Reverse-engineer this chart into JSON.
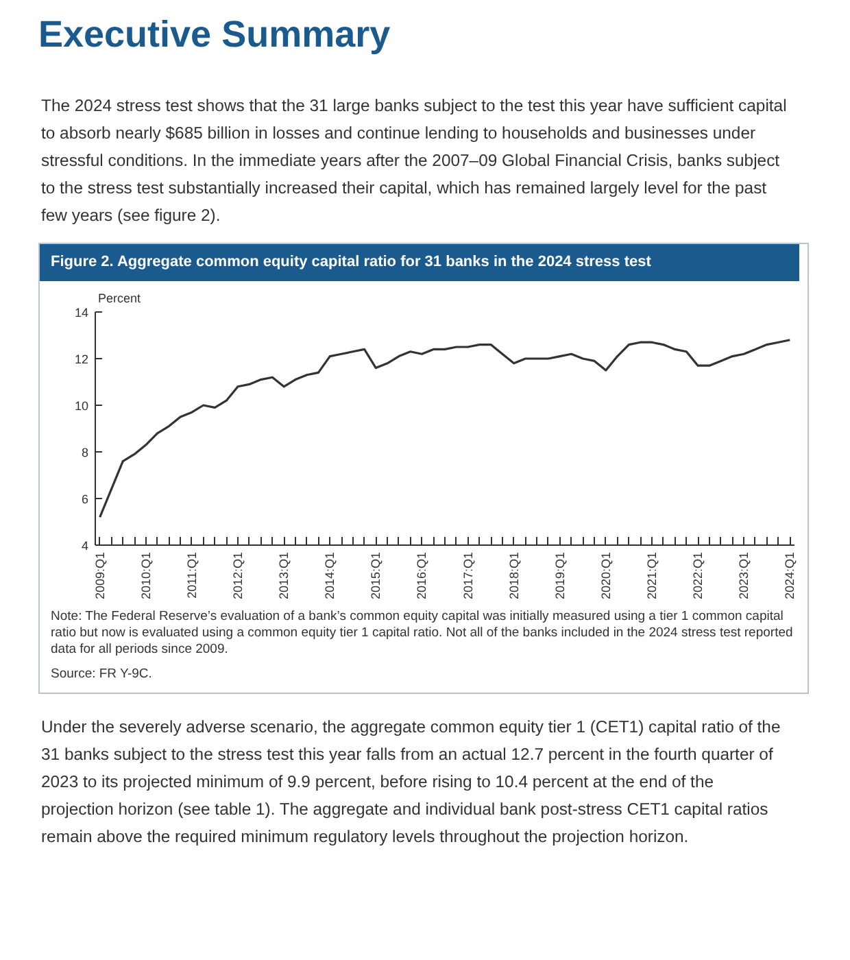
{
  "chart_data": {
    "type": "line",
    "title": "Figure 2. Aggregate common equity capital ratio for 31 banks in the 2024 stress test",
    "ylabel": "Percent",
    "annotations": [
      "Executive Summary",
      "The 2024 stress test shows that the 31 large banks subject to the test this year have sufficient capital to absorb nearly $685 billion in losses and continue lending to households and businesses under stressful conditions. In the immediate years after the 2007–09 Global Financial Crisis, banks subject to the stress test substantially increased their capital, which has remained largely level for the past few years (see figure 2).",
      "Note: The Federal Reserve’s evaluation of a bank’s common equity capital was initially measured using a tier 1 common capital ratio but now is evaluated using a common equity tier 1 capital ratio. Not all of the banks included in the 2024 stress test reported data for all periods since 2009.",
      "Source: FR Y-9C.",
      "Under the severely adverse scenario, the aggregate common equity tier 1 (CET1) capital ratio of the 31 banks subject to the stress test this year falls from an actual 12.7 percent in the fourth quarter of 2023 to its projected minimum of 9.9 percent, before rising to 10.4 percent at the end of the projection horizon (see table 1). The aggregate and individual bank post-stress CET1 capital ratios remain above the required minimum regulatory levels throughout the projection horizon."
    ],
    "categories": [
      "2009:Q1",
      null,
      null,
      null,
      "2010:Q1",
      null,
      null,
      null,
      "2011:Q1",
      null,
      null,
      null,
      "2012:Q1",
      null,
      null,
      null,
      "2013:Q1",
      null,
      null,
      null,
      "2014:Q1",
      null,
      null,
      null,
      "2015:Q1",
      null,
      null,
      null,
      "2016:Q1",
      null,
      null,
      null,
      "2017:Q1",
      null,
      null,
      null,
      "2018:Q1",
      null,
      null,
      null,
      "2019:Q1",
      null,
      null,
      null,
      "2020:Q1",
      null,
      null,
      null,
      "2021:Q1",
      null,
      null,
      null,
      "2022:Q1",
      null,
      null,
      null,
      "2023:Q1",
      null,
      null,
      null,
      "2024:Q1"
    ],
    "series": [
      {
        "color": "#333333",
        "values": [
          5.2,
          6.4,
          7.6,
          7.9,
          8.3,
          8.8,
          9.1,
          9.5,
          9.7,
          10.0,
          9.9,
          10.2,
          10.8,
          10.9,
          11.1,
          11.2,
          10.8,
          11.1,
          11.3,
          11.4,
          12.1,
          12.2,
          12.3,
          12.4,
          11.6,
          11.8,
          12.1,
          12.3,
          12.2,
          12.4,
          12.4,
          12.5,
          12.5,
          12.6,
          12.6,
          12.2,
          11.8,
          12.0,
          12.0,
          12.0,
          12.1,
          12.2,
          12.0,
          11.9,
          11.5,
          12.1,
          12.6,
          12.7,
          12.7,
          12.6,
          12.4,
          12.3,
          11.7,
          11.7,
          11.9,
          12.1,
          12.2,
          12.4,
          12.6,
          12.7,
          12.8
        ]
      }
    ],
    "ylim": [
      4,
      14
    ],
    "yticks": [
      4,
      6,
      8,
      10,
      12,
      14
    ],
    "grid": false,
    "line_style": "solid"
  }
}
